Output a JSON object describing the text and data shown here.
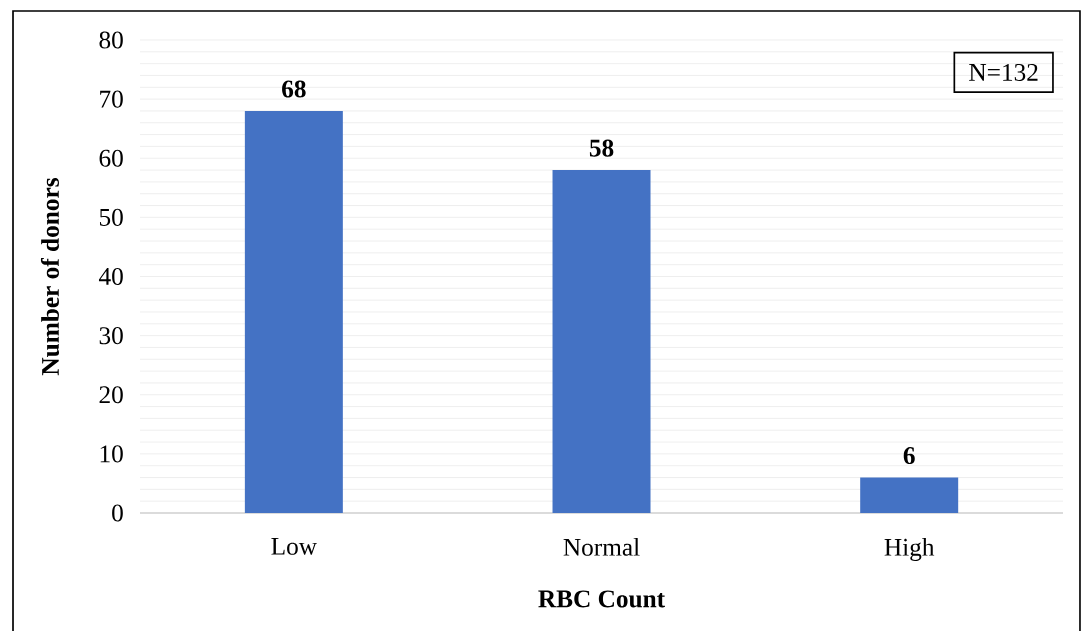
{
  "chart_data": {
    "type": "bar",
    "xlabel": "RBC Count",
    "ylabel": "Number of donors",
    "categories": [
      "Low",
      "Normal",
      "High"
    ],
    "values": [
      68,
      58,
      6
    ],
    "color": "#4472c4",
    "ylim": [
      0,
      80
    ],
    "yticks": [
      0,
      10,
      20,
      30,
      40,
      50,
      60,
      70,
      80
    ],
    "grid": "y",
    "data_labels": true,
    "annotations": [
      "N=132"
    ]
  }
}
